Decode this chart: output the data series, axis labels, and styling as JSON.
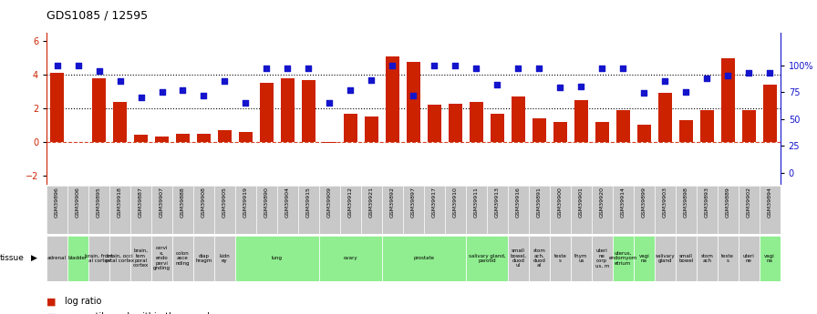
{
  "title": "GDS1085 / 12595",
  "samples": [
    "GSM39896",
    "GSM39906",
    "GSM39895",
    "GSM39918",
    "GSM39887",
    "GSM39907",
    "GSM39888",
    "GSM39908",
    "GSM39905",
    "GSM39919",
    "GSM39890",
    "GSM39904",
    "GSM39915",
    "GSM39909",
    "GSM39912",
    "GSM39921",
    "GSM39892",
    "GSM39897",
    "GSM39917",
    "GSM39910",
    "GSM39911",
    "GSM39913",
    "GSM39916",
    "GSM39891",
    "GSM39900",
    "GSM39901",
    "GSM39920",
    "GSM39914",
    "GSM39899",
    "GSM39903",
    "GSM39898",
    "GSM39893",
    "GSM39889",
    "GSM39902",
    "GSM39894"
  ],
  "log_ratio": [
    4.1,
    0.0,
    3.8,
    2.4,
    0.4,
    0.3,
    0.5,
    0.5,
    0.7,
    0.6,
    3.5,
    3.8,
    3.7,
    -0.05,
    1.7,
    1.5,
    5.1,
    4.8,
    2.2,
    2.3,
    2.4,
    1.7,
    2.7,
    1.4,
    1.2,
    2.5,
    1.2,
    1.9,
    1.0,
    2.9,
    1.3,
    1.9,
    5.0,
    1.9,
    3.4
  ],
  "percentile_rank_pct": [
    100,
    100,
    95,
    85,
    70,
    75,
    77,
    72,
    85,
    65,
    97,
    97,
    97,
    65,
    77,
    86,
    100,
    72,
    100,
    100,
    97,
    82,
    97,
    97,
    79,
    80,
    97,
    97,
    74,
    85,
    75,
    88,
    90,
    93,
    93
  ],
  "bar_color": "#cc2200",
  "dot_color": "#1414cc",
  "ylim_left": [
    -2.5,
    6.5
  ],
  "ylim_right": [
    -10.4,
    130
  ],
  "yticks_left": [
    -2,
    0,
    2,
    4,
    6
  ],
  "yticks_right": [
    0,
    25,
    50,
    75,
    100
  ],
  "ytick_labels_right": [
    "0",
    "25",
    "50",
    "75",
    "100%"
  ],
  "hlines_y": [
    0.0,
    2.0,
    4.0
  ],
  "hlines_style": [
    "reddash",
    "dotted",
    "dotted"
  ],
  "tissue_spans": [
    [
      0,
      1,
      "adrenal",
      "#c8c8c8"
    ],
    [
      1,
      2,
      "bladder",
      "#90ee90"
    ],
    [
      2,
      3,
      "brain, front\nal cortex",
      "#c8c8c8"
    ],
    [
      3,
      4,
      "brain, occi\npital cortex",
      "#c8c8c8"
    ],
    [
      4,
      5,
      "brain,\ntem\nporal\ncortex",
      "#c8c8c8"
    ],
    [
      5,
      6,
      "cervi\nx,\nendo\nasce\npervignding",
      "#c8c8c8"
    ],
    [
      6,
      7,
      "colon\nasce\nnding",
      "#c8c8c8"
    ],
    [
      7,
      8,
      "diap\nhragm",
      "#c8c8c8"
    ],
    [
      8,
      9,
      "kidn\ney",
      "#c8c8c8"
    ],
    [
      9,
      13,
      "lung",
      "#90ee90"
    ],
    [
      13,
      16,
      "ovary",
      "#90ee90"
    ],
    [
      16,
      20,
      "prostate",
      "#90ee90"
    ],
    [
      20,
      22,
      "salivary gland,\nparotid",
      "#90ee90"
    ],
    [
      22,
      23,
      "small\nbowel,\nduod\nul",
      "#c8c8c8"
    ],
    [
      23,
      24,
      "stom\nach,\nduod\nal",
      "#c8c8c8"
    ],
    [
      24,
      25,
      "teste\ns",
      "#c8c8c8"
    ],
    [
      25,
      26,
      "thym\nus",
      "#c8c8c8"
    ],
    [
      26,
      27,
      "uteri\nne\ncorp\nus, m",
      "#c8c8c8"
    ],
    [
      27,
      28,
      "uterus,\nendomyom\netrium",
      "#90ee90"
    ],
    [
      28,
      29,
      "vagi\nna",
      "#90ee90"
    ],
    [
      29,
      30,
      "salivary gland,\nparotid",
      "#c8c8c8"
    ],
    [
      30,
      31,
      "small\nbowel,\nduod\nul",
      "#c8c8c8"
    ],
    [
      31,
      32,
      "stom\nach,\nduod\nal",
      "#90ee90"
    ],
    [
      32,
      33,
      "teste\ns",
      "#c8c8c8"
    ],
    [
      33,
      34,
      "uteri\nne",
      "#90ee90"
    ],
    [
      34,
      35,
      "vagi\nna",
      "#90ee90"
    ]
  ]
}
